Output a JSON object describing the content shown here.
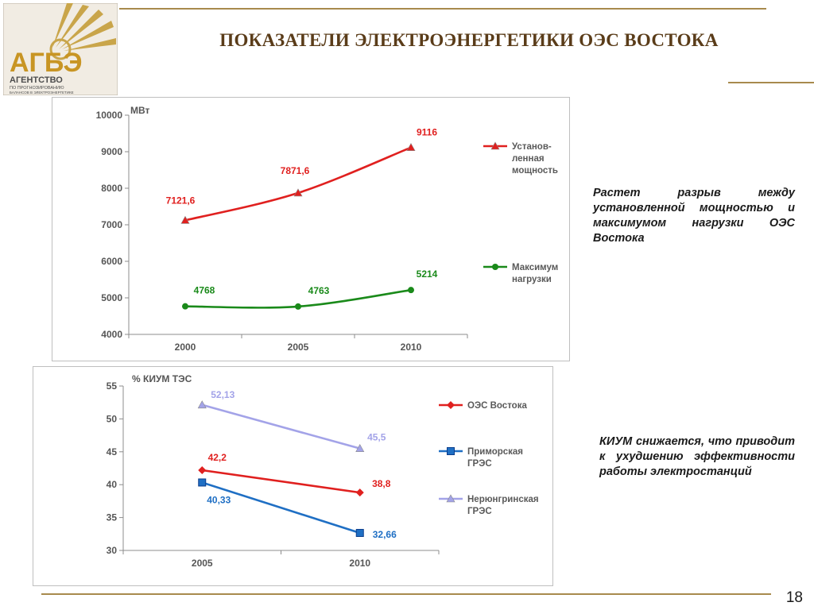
{
  "header": {
    "title": "ПОКАЗАТЕЛИ ЭЛЕКТРОЭНЕРГЕТИКИ ОЭС ВОСТОКА",
    "logo_text": "АГБЭ",
    "logo_sub1": "АГЕНТСТВО",
    "logo_sub2": "ПО ПРОГНОЗИРОВАНИЮ",
    "logo_sub3": "БАЛАНСОВ В ЭЛЕКТРОЭНЕРГЕТИКЕ"
  },
  "notes": {
    "power_gap": "Растет разрыв между установленной мощностью и максимумом нагрузки ОЭС Востока",
    "kium_drop": "КИУМ снижается, что приводит к ухудшению эффективности работы электростанций"
  },
  "page_number": "18",
  "colors": {
    "red": "#e0201f",
    "green": "#1a8a1a",
    "blue": "#1f6fc4",
    "lilac": "#a3a3e8",
    "gold": "#a88a4d"
  },
  "chart_data": [
    {
      "type": "line",
      "unit_label": "МВт",
      "categories": [
        "2000",
        "2005",
        "2010"
      ],
      "ylim": [
        4000,
        10000
      ],
      "yticks": [
        "4000",
        "5000",
        "6000",
        "7000",
        "8000",
        "9000",
        "10000"
      ],
      "legend_position": "right",
      "series": [
        {
          "name": "Установ-ленная мощность",
          "legend_lines": [
            "Установ-",
            "ленная",
            "мощность"
          ],
          "values": [
            7121.6,
            7871.6,
            9116
          ],
          "labels": [
            "7121,6",
            "7871,6",
            "9116"
          ],
          "color": "#e0201f",
          "marker": "triangle"
        },
        {
          "name": "Максимум нагрузки",
          "legend_lines": [
            "Максимум",
            "нагрузки"
          ],
          "values": [
            4768,
            4763,
            5214
          ],
          "labels": [
            "4768",
            "4763",
            "5214"
          ],
          "color": "#1a8a1a",
          "marker": "circle"
        }
      ]
    },
    {
      "type": "line",
      "unit_label": "%  КИУМ ТЭС",
      "categories": [
        "2005",
        "2010"
      ],
      "ylim": [
        30,
        55
      ],
      "yticks": [
        "30",
        "35",
        "40",
        "45",
        "50",
        "55"
      ],
      "legend_position": "right",
      "series": [
        {
          "name": "ОЭС Востока",
          "legend_lines": [
            "ОЭС Востока"
          ],
          "values": [
            42.2,
            38.8
          ],
          "labels": [
            "42,2",
            "38,8"
          ],
          "color": "#e0201f",
          "marker": "diamond"
        },
        {
          "name": "Приморская ГРЭС",
          "legend_lines": [
            "Приморская",
            "ГРЭС"
          ],
          "values": [
            40.33,
            32.66
          ],
          "labels": [
            "40,33",
            "32,66"
          ],
          "color": "#1f6fc4",
          "marker": "square"
        },
        {
          "name": "Нерюнгринская ГРЭС",
          "legend_lines": [
            "Нерюнгринская",
            "ГРЭС"
          ],
          "values": [
            52.13,
            45.5
          ],
          "labels": [
            "52,13",
            "45,5"
          ],
          "color": "#a3a3e8",
          "marker": "triangle"
        }
      ]
    }
  ]
}
